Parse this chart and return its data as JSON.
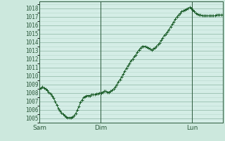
{
  "background_color": "#cce8dd",
  "plot_bg_color": "#d4ede6",
  "grid_color_minor": "#b8d8cc",
  "grid_color_major": "#99bfae",
  "line_color": "#1a5c28",
  "marker_color": "#1a5c28",
  "ylim": [
    1004.5,
    1018.8
  ],
  "yticks": [
    1005,
    1006,
    1007,
    1008,
    1009,
    1010,
    1011,
    1012,
    1013,
    1014,
    1015,
    1016,
    1017,
    1018
  ],
  "day_labels": [
    "Sam",
    "Dim",
    "Lun"
  ],
  "day_positions": [
    0,
    0.333,
    0.833
  ],
  "pressure_values": [
    1008.5,
    1008.6,
    1008.7,
    1008.6,
    1008.5,
    1008.3,
    1008.1,
    1007.9,
    1007.7,
    1007.4,
    1007.0,
    1006.6,
    1006.2,
    1005.9,
    1005.7,
    1005.5,
    1005.3,
    1005.2,
    1005.1,
    1005.1,
    1005.1,
    1005.2,
    1005.3,
    1005.6,
    1006.0,
    1006.4,
    1006.9,
    1007.2,
    1007.5,
    1007.6,
    1007.7,
    1007.7,
    1007.7,
    1007.8,
    1007.8,
    1007.8,
    1007.9,
    1007.9,
    1008.0,
    1008.0,
    1008.1,
    1008.2,
    1008.2,
    1008.1,
    1008.1,
    1008.2,
    1008.3,
    1008.5,
    1008.7,
    1009.0,
    1009.3,
    1009.6,
    1009.9,
    1010.2,
    1010.6,
    1010.9,
    1011.2,
    1011.5,
    1011.8,
    1012.0,
    1012.3,
    1012.5,
    1012.8,
    1013.1,
    1013.3,
    1013.5,
    1013.5,
    1013.5,
    1013.4,
    1013.3,
    1013.2,
    1013.1,
    1013.2,
    1013.3,
    1013.5,
    1013.7,
    1013.9,
    1014.2,
    1014.5,
    1014.8,
    1015.0,
    1015.2,
    1015.5,
    1015.8,
    1016.1,
    1016.4,
    1016.7,
    1017.0,
    1017.2,
    1017.4,
    1017.6,
    1017.7,
    1017.8,
    1017.9,
    1018.0,
    1018.1,
    1018.0,
    1017.8,
    1017.6,
    1017.4,
    1017.3,
    1017.2,
    1017.2,
    1017.1,
    1017.1,
    1017.1,
    1017.1,
    1017.1,
    1017.1,
    1017.1,
    1017.1,
    1017.1,
    1017.2,
    1017.2,
    1017.2,
    1017.2,
    1017.2
  ]
}
